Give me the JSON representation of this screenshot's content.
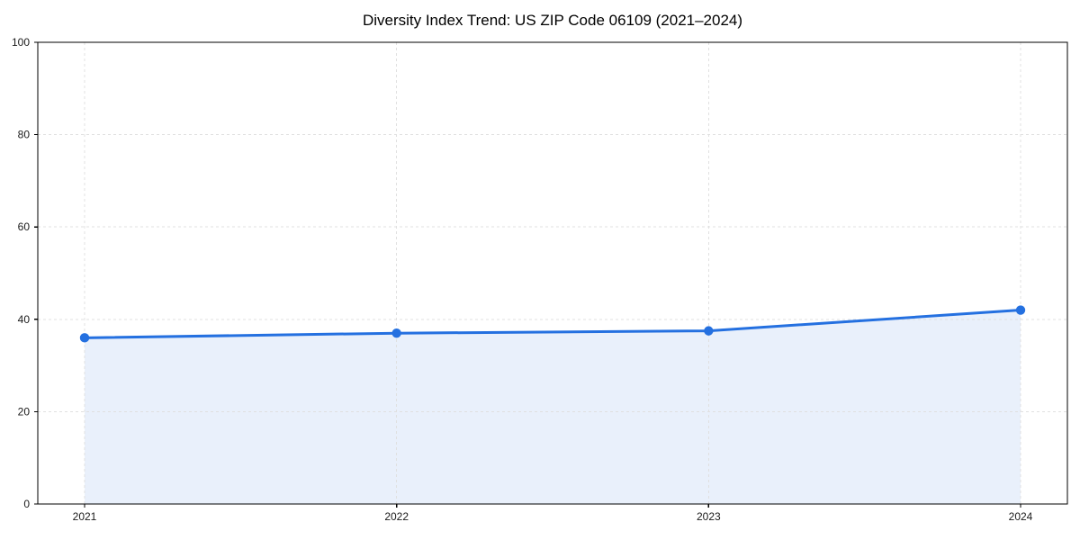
{
  "chart_data": {
    "type": "line",
    "title": "Diversity Index Trend: US ZIP Code 06109 (2021–2024)",
    "x": [
      "2021",
      "2022",
      "2023",
      "2024"
    ],
    "series": [
      {
        "name": "Diversity Index",
        "values": [
          36,
          37,
          37.5,
          42
        ]
      }
    ],
    "ylim": [
      0,
      100
    ],
    "yticks": [
      0,
      20,
      40,
      60,
      80,
      100
    ],
    "xlabel": "",
    "ylabel": "",
    "grid": true,
    "grid_style": "dashed",
    "legend": "none",
    "area_fill": true,
    "markers": true,
    "colors": {
      "line": "#2470e0",
      "marker": "#2470e0",
      "area_fill": "#e9f0fb",
      "grid": "#e0e0e0",
      "axis": "#000000",
      "tick_text": "#1a1a1a",
      "background": "#ffffff"
    }
  }
}
